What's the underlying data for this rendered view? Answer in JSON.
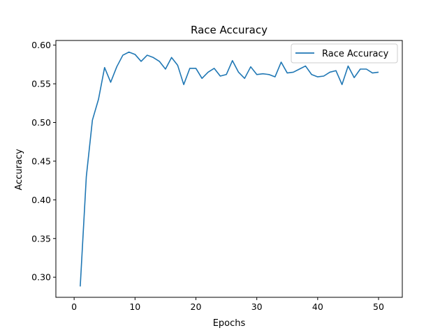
{
  "chart_data": {
    "type": "line",
    "title": "Race Accuracy",
    "xlabel": "Epochs",
    "ylabel": "Accuracy",
    "xlim": [
      -3.0,
      53.9
    ],
    "ylim": [
      0.274,
      0.606
    ],
    "xticks": [
      0,
      10,
      20,
      30,
      40,
      50
    ],
    "yticks": [
      0.3,
      0.35,
      0.4,
      0.45,
      0.5,
      0.55,
      0.6
    ],
    "ytick_labels": [
      "0.30",
      "0.35",
      "0.40",
      "0.45",
      "0.50",
      "0.55",
      "0.60"
    ],
    "grid": false,
    "legend_position": "top-right",
    "series": [
      {
        "name": "Race Accuracy",
        "color": "#1f77b4",
        "x": [
          1,
          2,
          3,
          4,
          5,
          6,
          7,
          8,
          9,
          10,
          11,
          12,
          13,
          14,
          15,
          16,
          17,
          18,
          19,
          20,
          21,
          22,
          23,
          24,
          25,
          26,
          27,
          28,
          29,
          30,
          31,
          32,
          33,
          34,
          35,
          36,
          37,
          38,
          39,
          40,
          41,
          42,
          43,
          44,
          45,
          46,
          47,
          48,
          49,
          50
        ],
        "y": [
          0.288,
          0.43,
          0.503,
          0.53,
          0.571,
          0.552,
          0.572,
          0.587,
          0.591,
          0.588,
          0.579,
          0.587,
          0.584,
          0.579,
          0.569,
          0.584,
          0.574,
          0.549,
          0.57,
          0.57,
          0.557,
          0.565,
          0.57,
          0.56,
          0.562,
          0.58,
          0.565,
          0.557,
          0.572,
          0.562,
          0.563,
          0.562,
          0.559,
          0.578,
          0.564,
          0.565,
          0.569,
          0.573,
          0.562,
          0.559,
          0.56,
          0.565,
          0.567,
          0.549,
          0.573,
          0.558,
          0.569,
          0.569,
          0.564,
          0.565
        ]
      }
    ]
  }
}
